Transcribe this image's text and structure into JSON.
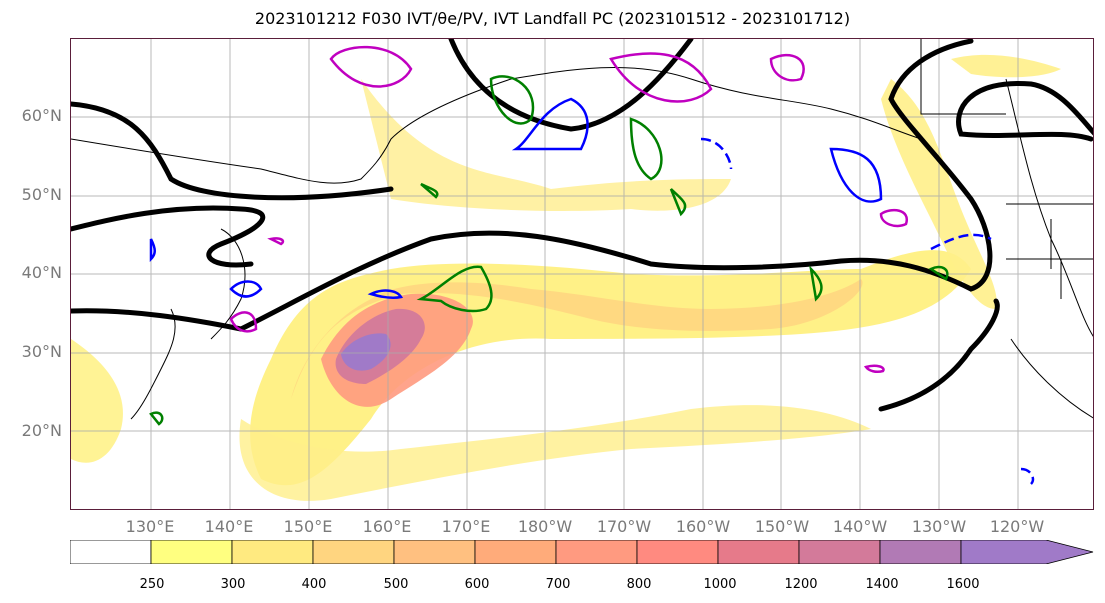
{
  "title": "2023101212 F030 IVT/θe/PV, IVT Landfall PC (2023101512 - 2023101712)",
  "map": {
    "latitude_labels": [
      "60°N",
      "50°N",
      "40°N",
      "30°N",
      "20°N"
    ],
    "longitude_labels": [
      "130°E",
      "140°E",
      "150°E",
      "160°E",
      "170°E",
      "180°W",
      "170°W",
      "160°W",
      "150°W",
      "140°W",
      "130°W",
      "120°W"
    ],
    "gridlines": true,
    "contour_colors": {
      "theta_e_line": "#000000",
      "positive_contour": "#0000ff",
      "pv_contour": "#c000c0",
      "green_contour": "#008000"
    }
  },
  "colorbar": {
    "tick_labels": [
      "250",
      "300",
      "400",
      "500",
      "600",
      "700",
      "800",
      "1000",
      "1200",
      "1400",
      "1600"
    ],
    "colors": [
      "#ffffff",
      "#ffff80",
      "#ffea80",
      "#ffd580",
      "#ffc080",
      "#ffab7a",
      "#ff9a80",
      "#ff8a80",
      "#e67a8a",
      "#d37a9a",
      "#b17ab5",
      "#a07ac8"
    ],
    "extend": "max"
  }
}
